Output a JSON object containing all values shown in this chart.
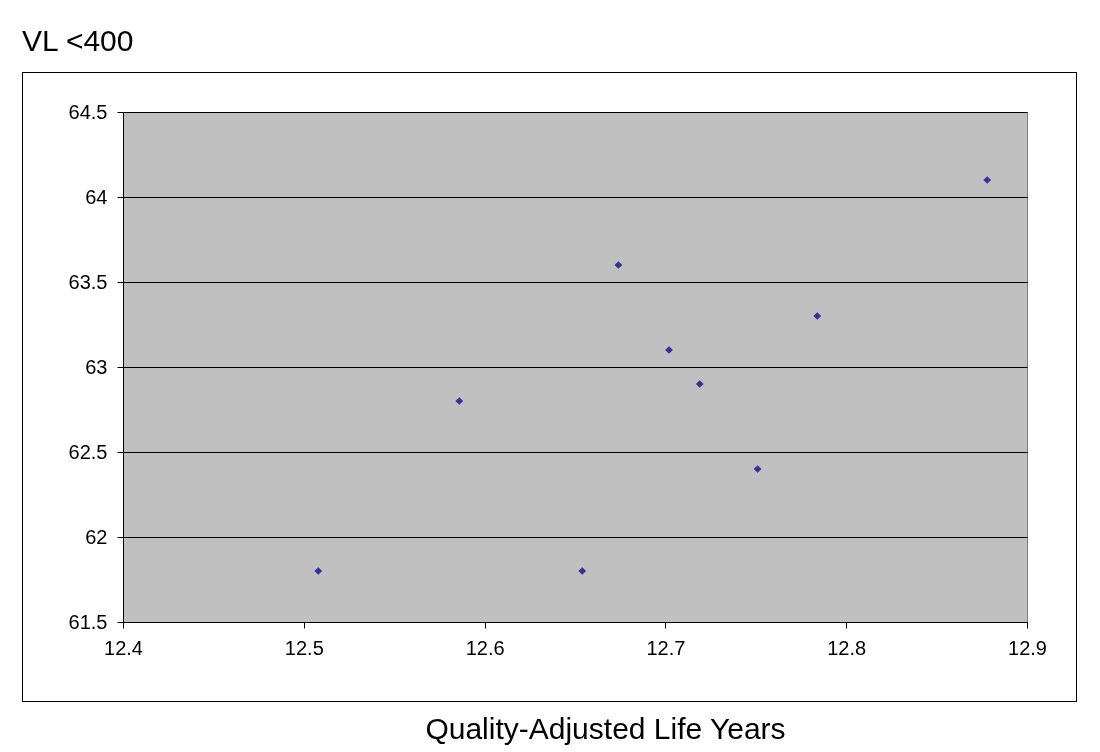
{
  "chart_data": {
    "type": "scatter",
    "title": "VL <400",
    "xlabel": "Quality-Adjusted Life Years",
    "x": [
      12.508,
      12.586,
      12.654,
      12.674,
      12.702,
      12.719,
      12.751,
      12.784,
      12.878
    ],
    "values": [
      61.8,
      62.8,
      61.8,
      63.6,
      63.1,
      62.9,
      62.4,
      63.3,
      64.1
    ],
    "color": "#333399",
    "marker": "diamond",
    "grid": "y",
    "xlim": [
      12.4,
      12.9
    ],
    "xticks": [
      12.4,
      12.5,
      12.6,
      12.7,
      12.8,
      12.9
    ],
    "ylim": [
      61.5,
      64.5
    ],
    "yticks": [
      61.5,
      62,
      62.5,
      63,
      63.5,
      64,
      64.5
    ]
  }
}
